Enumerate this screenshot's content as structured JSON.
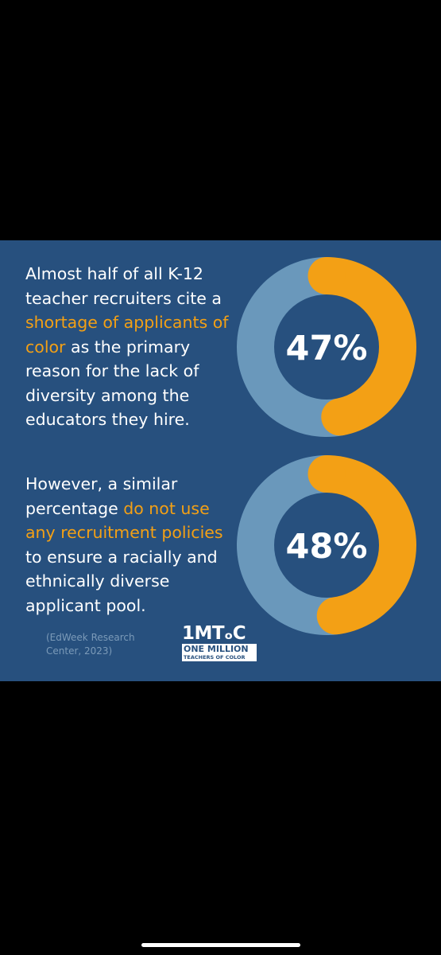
{
  "colors": {
    "card_background": "#27507e",
    "donut_remainder": "#6a98bb",
    "donut_value": "#f3a015",
    "donut_center": "#27507e",
    "highlight_text": "#f3a015"
  },
  "stats": [
    {
      "text_before": "Almost half of all K-12 teacher recruiters cite a ",
      "text_highlight": "shortage of applicants of color",
      "text_after": " as the primary reason for the lack of diversity among the educators they hire.",
      "percent_label": "47%"
    },
    {
      "text_before": "However, a similar percentage ",
      "text_highlight": "do not use any recruitment policies",
      "text_after": " to ensure a racially and ethnically diverse applicant pool.",
      "percent_label": "48%"
    }
  ],
  "chart_data": [
    {
      "type": "pie",
      "style": "donut",
      "values": [
        47,
        53
      ],
      "label": "47%"
    },
    {
      "type": "pie",
      "style": "donut",
      "values": [
        48,
        52
      ],
      "label": "48%"
    }
  ],
  "source": {
    "text": "(EdWeek Research Center, 2023)"
  },
  "logo": {
    "top": "1MTₒC",
    "line1": "ONE MILLION",
    "line2": "TEACHERS OF COLOR"
  }
}
